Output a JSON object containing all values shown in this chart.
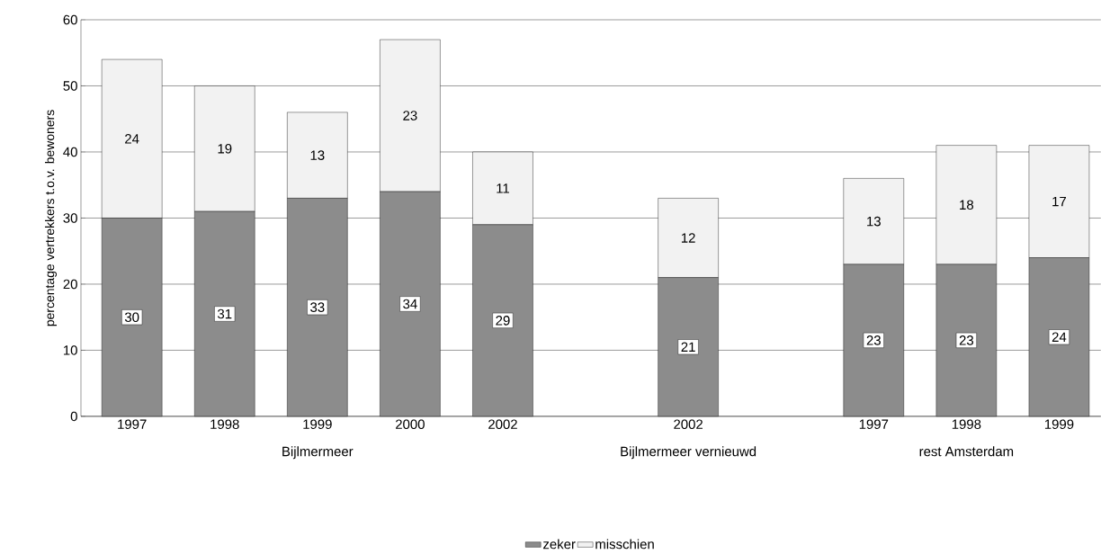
{
  "chart_data": {
    "type": "bar",
    "stacked": true,
    "ylabel": "percentage vertrekkers t.o.v. bewoners",
    "categories": [
      "1997",
      "1998",
      "1999",
      "2000",
      "2002",
      null,
      "2002",
      null,
      "1997",
      "1998",
      "1999"
    ],
    "series": [
      {
        "name": "zeker",
        "color": "#8c8c8c",
        "values": [
          30,
          31,
          33,
          34,
          29,
          null,
          21,
          null,
          23,
          23,
          24
        ]
      },
      {
        "name": "misschien",
        "color": "#f2f2f2",
        "values": [
          24,
          19,
          13,
          23,
          11,
          null,
          12,
          null,
          13,
          18,
          17
        ]
      }
    ],
    "annotations": [
      "Bijlmermeer",
      "Bijlmermeer vernieuwd",
      "rest Amsterdam"
    ],
    "ylim": [
      0,
      60
    ],
    "yticks": [
      0,
      10,
      20,
      30,
      40,
      50,
      60
    ],
    "grid": "y",
    "data_labels": true,
    "legend": "bottom"
  }
}
